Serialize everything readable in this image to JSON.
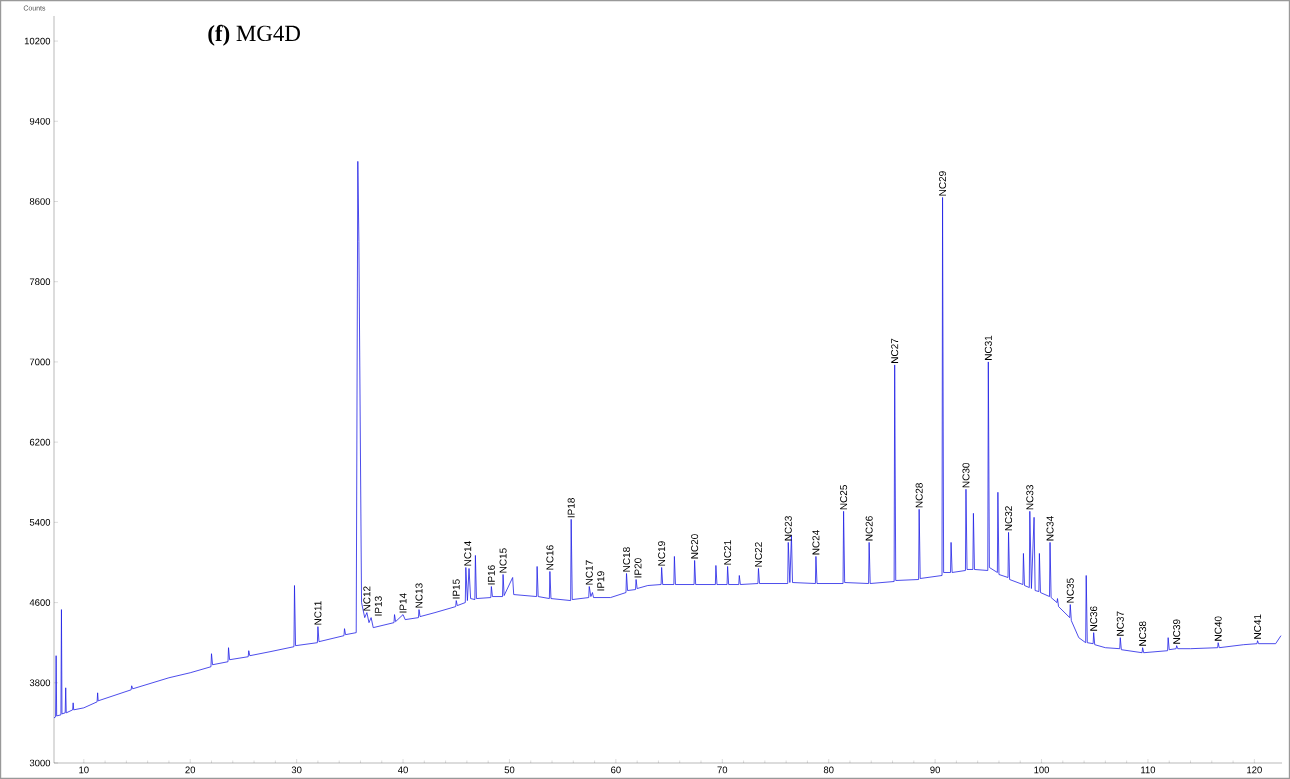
{
  "chart_data": {
    "type": "line",
    "title": "**(f)** MG4D",
    "ylabel": "Counts",
    "xlim": [
      7.2,
      122.6
    ],
    "ylim": [
      3000,
      10450
    ],
    "xticks": [
      10,
      20,
      30,
      40,
      50,
      60,
      70,
      80,
      90,
      100,
      110,
      120
    ],
    "yticks": [
      3000,
      3800,
      4600,
      5400,
      6200,
      7000,
      7800,
      8600,
      9400,
      10200
    ],
    "grid": false,
    "marker": "none",
    "line_style": "solid",
    "series": [
      {
        "color": "#1f1fe6",
        "x": [
          7.2,
          7.35,
          7.4,
          7.45,
          7.85,
          7.9,
          7.95,
          8.25,
          8.3,
          8.35,
          8.95,
          9.0,
          9.05,
          10,
          11.25,
          11.3,
          11.35,
          14.45,
          14.5,
          14.6,
          18,
          20,
          21.95,
          22,
          22.1,
          23.55,
          23.6,
          23.7,
          25.45,
          25.5,
          25.6,
          27.5,
          29.75,
          29.8,
          29.9,
          31.95,
          32,
          32.1,
          34.45,
          34.5,
          34.6,
          35.6,
          35.75,
          35.85,
          36.1,
          36.4,
          36.6,
          36.8,
          37,
          37.2,
          39.15,
          39.2,
          39.3,
          40,
          40.2,
          41.45,
          41.5,
          41.6,
          43,
          44.95,
          45,
          45.1,
          45.85,
          45.9,
          46.05,
          46.2,
          46.35,
          46.75,
          46.8,
          46.9,
          48.25,
          48.3,
          48.4,
          49.35,
          49.4,
          49.5,
          50.3,
          50.4,
          52.55,
          52.6,
          52.7,
          53.75,
          53.8,
          53.9,
          55.75,
          55.8,
          55.9,
          57.45,
          57.5,
          57.65,
          57.8,
          57.9,
          59.5,
          60.95,
          61,
          61.1,
          61.85,
          61.9,
          62,
          63,
          64.25,
          64.3,
          64.4,
          65.45,
          65.5,
          65.6,
          67.35,
          67.4,
          67.5,
          69.35,
          69.4,
          69.5,
          70.45,
          70.5,
          70.6,
          71.55,
          71.6,
          71.7,
          73.35,
          73.4,
          73.5,
          76.15,
          76.2,
          76.35,
          76.5,
          76.6,
          78.75,
          78.8,
          78.9,
          81.35,
          81.4,
          81.5,
          83.75,
          83.8,
          83.9,
          86.15,
          86.2,
          86.3,
          88.45,
          88.5,
          88.6,
          90.65,
          90.7,
          90.8,
          91.45,
          91.5,
          91.6,
          92.85,
          92.9,
          93,
          93.55,
          93.6,
          93.7,
          94.95,
          95,
          95.1,
          95.85,
          95.9,
          96,
          96.85,
          96.9,
          97,
          98.25,
          98.3,
          98.4,
          98.85,
          98.9,
          99.05,
          99.3,
          99.4,
          99.75,
          99.8,
          99.9,
          100.75,
          100.8,
          100.9,
          101.45,
          101.5,
          101.6,
          102.65,
          102.7,
          102.8,
          103.5,
          104.15,
          104.2,
          104.3,
          104.85,
          104.9,
          105,
          106,
          107.35,
          107.4,
          107.5,
          109.45,
          109.5,
          109.6,
          111.85,
          111.9,
          112,
          112.65,
          112.7,
          112.8,
          114,
          116.55,
          116.6,
          116.7,
          119,
          120.25,
          120.3,
          120.4,
          122,
          122.5
        ],
        "values": [
          3450,
          3460,
          4070,
          3470,
          3480,
          4530,
          3490,
          3500,
          3750,
          3500,
          3530,
          3600,
          3530,
          3550,
          3610,
          3700,
          3620,
          3730,
          3770,
          3740,
          3850,
          3900,
          3960,
          4090,
          3980,
          4010,
          4150,
          4030,
          4060,
          4120,
          4070,
          4110,
          4160,
          4770,
          4170,
          4200,
          4360,
          4210,
          4270,
          4340,
          4280,
          4300,
          9000,
          8200,
          4600,
          4450,
          4500,
          4400,
          4450,
          4350,
          4400,
          4480,
          4410,
          4480,
          4430,
          4450,
          4530,
          4460,
          4500,
          4560,
          4620,
          4570,
          4600,
          4950,
          4620,
          4940,
          4640,
          4630,
          5070,
          4640,
          4650,
          4760,
          4660,
          4660,
          4880,
          4670,
          4850,
          4680,
          4660,
          4960,
          4660,
          4640,
          4910,
          4640,
          4620,
          5430,
          4630,
          4650,
          4760,
          4660,
          4700,
          4650,
          4650,
          4700,
          4890,
          4720,
          4730,
          4830,
          4740,
          4770,
          4780,
          4950,
          4780,
          4780,
          5060,
          4780,
          4780,
          5020,
          4780,
          4780,
          4970,
          4780,
          4780,
          4960,
          4780,
          4780,
          4870,
          4780,
          4790,
          4940,
          4790,
          4790,
          5200,
          4800,
          5270,
          4800,
          4790,
          5060,
          4790,
          4790,
          5510,
          4800,
          4790,
          5200,
          4790,
          4810,
          6970,
          4820,
          4830,
          5530,
          4840,
          4870,
          8640,
          4900,
          4900,
          5200,
          4900,
          4920,
          5730,
          4930,
          4930,
          5490,
          4930,
          4920,
          7000,
          4950,
          4900,
          5700,
          4880,
          4850,
          5300,
          4830,
          4780,
          5090,
          4770,
          4750,
          5510,
          4740,
          5450,
          4720,
          4710,
          5090,
          4700,
          4660,
          5200,
          4650,
          4600,
          4640,
          4560,
          4450,
          4580,
          4420,
          4250,
          4200,
          4870,
          4200,
          4190,
          4300,
          4180,
          4150,
          4140,
          4250,
          4130,
          4100,
          4150,
          4100,
          4120,
          4250,
          4130,
          4140,
          4170,
          4140,
          4140,
          4150,
          4200,
          4150,
          4180,
          4190,
          4220,
          4190,
          4190,
          4270
        ]
      }
    ],
    "annotations": [
      {
        "text": "NC11",
        "x": 32,
        "y": 4360
      },
      {
        "text": "NC12",
        "x": 36.6,
        "y": 4500
      },
      {
        "text": "IP13",
        "x": 37,
        "y": 4450
      },
      {
        "text": "IP14",
        "x": 40,
        "y": 4480
      },
      {
        "text": "NC13",
        "x": 41.5,
        "y": 4530
      },
      {
        "text": "IP15",
        "x": 45,
        "y": 4620
      },
      {
        "text": "NC14",
        "x": 45.9,
        "y": 4950
      },
      {
        "text": "IP16",
        "x": 48.3,
        "y": 4760
      },
      {
        "text": "NC15",
        "x": 49.4,
        "y": 4880
      },
      {
        "text": "NC16",
        "x": 53.8,
        "y": 4910
      },
      {
        "text": "IP18",
        "x": 55.8,
        "y": 5430
      },
      {
        "text": "NC17",
        "x": 57.5,
        "y": 4760
      },
      {
        "text": "IP19",
        "x": 57.8,
        "y": 4700
      },
      {
        "text": "NC18",
        "x": 61,
        "y": 4890
      },
      {
        "text": "IP20",
        "x": 61.9,
        "y": 4830
      },
      {
        "text": "NC19",
        "x": 64.3,
        "y": 4950
      },
      {
        "text": "NC20",
        "x": 67.4,
        "y": 5020
      },
      {
        "text": "NC21",
        "x": 70.5,
        "y": 4960
      },
      {
        "text": "NC22",
        "x": 73.4,
        "y": 4940
      },
      {
        "text": "NC23",
        "x": 76.2,
        "y": 5200
      },
      {
        "text": "NC24",
        "x": 78.8,
        "y": 5060
      },
      {
        "text": "NC25",
        "x": 81.4,
        "y": 5510
      },
      {
        "text": "NC26",
        "x": 83.8,
        "y": 5200
      },
      {
        "text": "NC27",
        "x": 86.2,
        "y": 6970
      },
      {
        "text": "NC28",
        "x": 88.5,
        "y": 5530
      },
      {
        "text": "NC29",
        "x": 90.7,
        "y": 8640
      },
      {
        "text": "NC30",
        "x": 92.9,
        "y": 5730
      },
      {
        "text": "NC31",
        "x": 95,
        "y": 7000
      },
      {
        "text": "NC32",
        "x": 96.9,
        "y": 5300
      },
      {
        "text": "NC33",
        "x": 98.9,
        "y": 5510
      },
      {
        "text": "NC34",
        "x": 100.8,
        "y": 5200
      },
      {
        "text": "NC35",
        "x": 102.7,
        "y": 4580
      },
      {
        "text": "NC36",
        "x": 104.9,
        "y": 4300
      },
      {
        "text": "NC37",
        "x": 107.4,
        "y": 4250
      },
      {
        "text": "NC38",
        "x": 109.5,
        "y": 4150
      },
      {
        "text": "NC39",
        "x": 112.7,
        "y": 4170
      },
      {
        "text": "NC40",
        "x": 116.6,
        "y": 4200
      },
      {
        "text": "NC41",
        "x": 120.3,
        "y": 4220
      }
    ]
  }
}
